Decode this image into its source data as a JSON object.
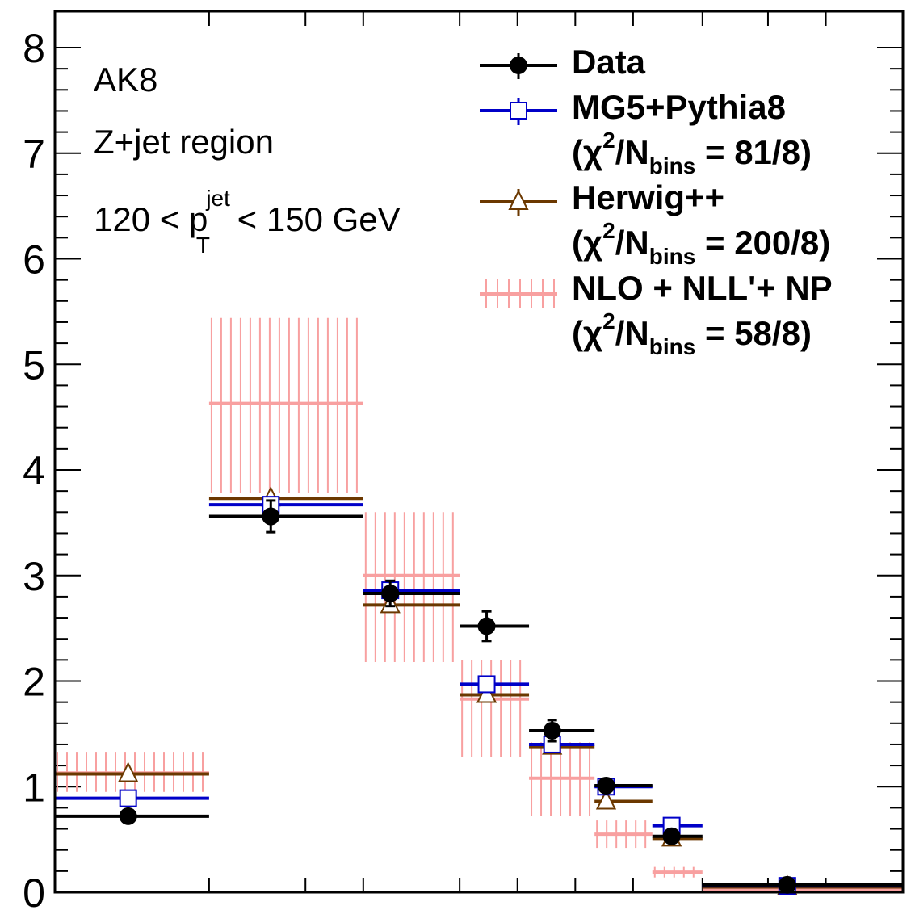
{
  "chart_data": {
    "type": "scatter",
    "title": "",
    "xlabel": "",
    "ylabel": "",
    "ylim": [
      0,
      8.4
    ],
    "yticks": [
      "0",
      "1",
      "2",
      "3",
      "4",
      "5",
      "6",
      "7",
      "8"
    ],
    "annotations": {
      "algo": "AK8",
      "region": "Z+jet region",
      "pt_prefix": "120 < p",
      "pt_sup": "jet",
      "pt_sub": "T",
      "pt_suffix": " < 150 GeV"
    },
    "bins": [
      [
        -1.0,
        -0.6
      ],
      [
        -0.6,
        -0.2
      ],
      [
        -0.2,
        0.05
      ],
      [
        0.05,
        0.23
      ],
      [
        0.23,
        0.4
      ],
      [
        0.4,
        0.55
      ],
      [
        0.55,
        0.68
      ],
      [
        0.68,
        1.2
      ]
    ],
    "legend": {
      "data": "Data",
      "mg5": "MG5+Pythia8",
      "mg5_chi": "81/8",
      "herwig": "Herwig++",
      "herwig_chi": "200/8",
      "nlo": "NLO + NLL'+ NP",
      "nlo_chi": "58/8",
      "chi_prefix": "(χ",
      "chi_sup": "2",
      "chi_mid": "/N",
      "chi_sub": "bins",
      "chi_eq": " = "
    },
    "series": [
      {
        "name": "Data",
        "color": "#000000",
        "marker": "filled-circle",
        "values": [
          0.72,
          3.56,
          2.83,
          2.52,
          1.53,
          1.01,
          0.53,
          0.07
        ],
        "errors": [
          0.03,
          0.15,
          0.12,
          0.14,
          0.1,
          0.05,
          0.04,
          0.02
        ],
        "marker_x": [
          -0.81,
          -0.44,
          -0.13,
          0.12,
          0.29,
          0.43,
          0.6,
          0.9
        ]
      },
      {
        "name": "MG5+Pythia8",
        "color": "#0000c8",
        "marker": "open-square",
        "values": [
          0.89,
          3.67,
          2.86,
          1.97,
          1.4,
          1.0,
          0.63,
          0.06
        ],
        "errors": [
          0.02,
          0.05,
          0.06,
          0.04,
          0.04,
          0.03,
          0.03,
          0.01
        ],
        "marker_x": [
          -0.81,
          -0.44,
          -0.13,
          0.12,
          0.29,
          0.43,
          0.6,
          0.9
        ]
      },
      {
        "name": "Herwig++",
        "color": "#6b3800",
        "marker": "open-triangle",
        "values": [
          1.12,
          3.73,
          2.72,
          1.87,
          1.38,
          0.86,
          0.51,
          0.05
        ],
        "errors": [
          0.03,
          0.06,
          0.06,
          0.04,
          0.04,
          0.03,
          0.03,
          0.01
        ],
        "marker_x": [
          -0.81,
          -0.44,
          -0.13,
          0.12,
          0.29,
          0.43,
          0.6,
          0.9
        ]
      },
      {
        "name": "NLO + NLL'+ NP",
        "color": "#f8a0a0",
        "marker": "hatched-band",
        "values": [
          1.13,
          4.63,
          3.0,
          1.83,
          1.08,
          0.55,
          0.19,
          0.03
        ],
        "band_low": [
          0.95,
          3.78,
          2.18,
          1.28,
          0.72,
          0.42,
          0.14,
          0.01
        ],
        "band_high": [
          1.33,
          5.44,
          3.6,
          2.2,
          1.42,
          0.68,
          0.24,
          0.05
        ]
      }
    ]
  }
}
